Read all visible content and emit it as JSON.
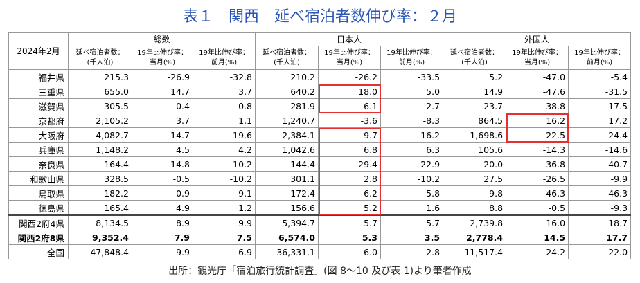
{
  "title": "表１　関西　延べ宿泊者数伸び率：２月",
  "table": {
    "corner": "2024年2月",
    "groups": [
      "総数",
      "日本人",
      "外国人"
    ],
    "subheaders": [
      [
        "延べ宿泊者数：",
        "(千人泊)"
      ],
      [
        "19年比伸び率：",
        "当月(%)"
      ],
      [
        "19年比伸び率：",
        "前月(%)"
      ],
      [
        "延べ宿泊者数：",
        "(千人泊)"
      ],
      [
        "19年比伸び率：",
        "当月(%)"
      ],
      [
        "19年比伸び率：",
        "前月(%)"
      ],
      [
        "延べ宿泊者数：",
        "(千人泊)"
      ],
      [
        "19年比伸び率：",
        "当月(%)"
      ],
      [
        "19年比伸び率：",
        "前月(%)"
      ]
    ],
    "rows": [
      {
        "label": "福井県",
        "cells": [
          "215.3",
          "-26.9",
          "-32.8",
          "210.2",
          "-26.2",
          "-33.5",
          "5.2",
          "-47.0",
          "-5.4"
        ]
      },
      {
        "label": "三重県",
        "cells": [
          "655.0",
          "14.7",
          "3.7",
          "640.2",
          "18.0",
          "5.0",
          "14.9",
          "-47.6",
          "-31.5"
        ]
      },
      {
        "label": "滋賀県",
        "cells": [
          "305.5",
          "0.4",
          "0.8",
          "281.9",
          "6.1",
          "2.7",
          "23.7",
          "-38.8",
          "-17.5"
        ]
      },
      {
        "label": "京都府",
        "cells": [
          "2,105.2",
          "3.7",
          "1.1",
          "1,240.7",
          "-3.6",
          "-8.3",
          "864.5",
          "16.2",
          "17.2"
        ]
      },
      {
        "label": "大阪府",
        "cells": [
          "4,082.7",
          "14.7",
          "19.6",
          "2,384.1",
          "9.7",
          "16.2",
          "1,698.6",
          "22.5",
          "24.4"
        ]
      },
      {
        "label": "兵庫県",
        "cells": [
          "1,148.2",
          "4.5",
          "4.2",
          "1,042.6",
          "6.8",
          "6.3",
          "105.6",
          "-14.3",
          "-14.6"
        ]
      },
      {
        "label": "奈良県",
        "cells": [
          "164.4",
          "14.8",
          "10.2",
          "144.4",
          "29.4",
          "22.9",
          "20.0",
          "-36.8",
          "-40.7"
        ]
      },
      {
        "label": "和歌山県",
        "cells": [
          "328.5",
          "-0.5",
          "-10.2",
          "301.1",
          "2.8",
          "-10.2",
          "27.5",
          "-26.5",
          "-9.9"
        ]
      },
      {
        "label": "鳥取県",
        "cells": [
          "182.2",
          "0.9",
          "-9.1",
          "172.4",
          "6.2",
          "-5.8",
          "9.8",
          "-46.3",
          "-46.3"
        ]
      },
      {
        "label": "徳島県",
        "cells": [
          "165.4",
          "4.9",
          "1.2",
          "156.6",
          "5.2",
          "1.6",
          "8.8",
          "-0.5",
          "-9.3"
        ]
      },
      {
        "label": "関西2府4県",
        "cells": [
          "8,134.5",
          "8.9",
          "9.9",
          "5,394.7",
          "5.7",
          "5.7",
          "2,739.8",
          "16.0",
          "18.7"
        ]
      },
      {
        "label": "関西2府8県",
        "cells": [
          "9,352.4",
          "7.9",
          "7.5",
          "6,574.0",
          "5.3",
          "3.5",
          "2,778.4",
          "14.5",
          "17.7"
        ]
      },
      {
        "label": "全国",
        "cells": [
          "47,848.4",
          "9.9",
          "6.9",
          "36,331.1",
          "6.0",
          "2.8",
          "11,517.4",
          "24.2",
          "22.0"
        ]
      }
    ]
  },
  "footnote": "出所：観光庁「宿泊旅行統計調査」(図 8～10 及び表 1)より筆者作成"
}
